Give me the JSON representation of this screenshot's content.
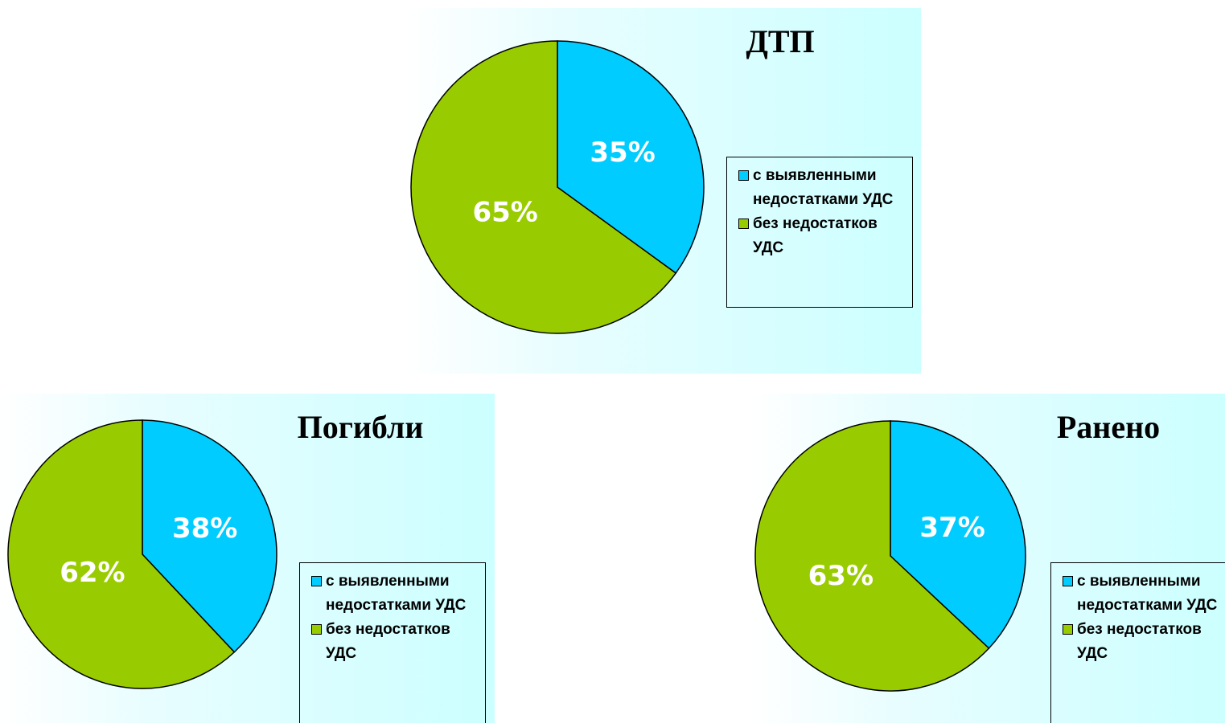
{
  "chart_data": [
    {
      "type": "pie",
      "title": "ДТП",
      "categories": [
        "с выявленными недостатками УДС",
        "без недостатков УДС"
      ],
      "values": [
        35,
        65
      ],
      "value_labels": [
        "35%",
        "65%"
      ],
      "colors": [
        "#00ccff",
        "#99cc00"
      ]
    },
    {
      "type": "pie",
      "title": "Погибли",
      "categories": [
        "с выявленными недостатками УДС",
        "без недостатков УДС"
      ],
      "values": [
        38,
        62
      ],
      "value_labels": [
        "38%",
        "62%"
      ],
      "colors": [
        "#00ccff",
        "#99cc00"
      ]
    },
    {
      "type": "pie",
      "title": "Ранено",
      "categories": [
        "с выявленными недостатками УДС",
        "без недостатков УДС"
      ],
      "values": [
        37,
        63
      ],
      "value_labels": [
        "37%",
        "63%"
      ],
      "colors": [
        "#00ccff",
        "#99cc00"
      ]
    }
  ]
}
